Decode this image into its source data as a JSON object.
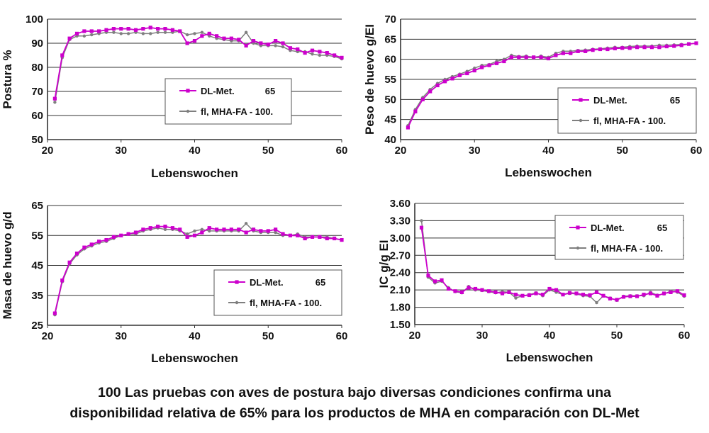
{
  "colors": {
    "dl": "#cc00cc",
    "mha": "#7f7f7f",
    "grid": "#333333",
    "frame": "#555555"
  },
  "caption": {
    "line1": "100 Las pruebas con aves de postura bajo diversas condiciones confirma una",
    "line2": "disponibilidad relativa de 65% para los productos de MHA en comparación con DL-Met"
  },
  "chart_data": [
    {
      "type": "line",
      "xlabel": "Lebenswochen",
      "ylabel": "Postura %",
      "xlim": [
        20,
        60
      ],
      "ylim": [
        50,
        100
      ],
      "xticks": [
        "20",
        "30",
        "40",
        "50",
        "60"
      ],
      "yticks": [
        "50",
        "60",
        "70",
        "80",
        "90",
        "100"
      ],
      "grid": "horizontal",
      "legend_position": "center-right",
      "legend": [
        {
          "label": "DL-Met.",
          "value": "65"
        },
        {
          "label": "fl, MHA-FA - 100.",
          "value": ""
        }
      ],
      "x": [
        21,
        22,
        23,
        24,
        25,
        26,
        27,
        28,
        29,
        30,
        31,
        32,
        33,
        34,
        35,
        36,
        37,
        38,
        39,
        40,
        41,
        42,
        43,
        44,
        45,
        46,
        47,
        48,
        49,
        50,
        51,
        52,
        53,
        54,
        55,
        56,
        57,
        58,
        59,
        60
      ],
      "series": [
        {
          "name": "DL-Met.",
          "values": [
            67,
            85,
            92,
            94,
            95,
            95,
            95,
            95.5,
            96,
            96,
            96,
            95.5,
            96,
            96.5,
            96,
            96,
            95.5,
            95,
            90,
            91,
            93,
            94,
            93,
            92,
            92,
            91.5,
            89,
            91,
            90,
            89.5,
            91,
            90,
            88,
            87.5,
            86,
            87,
            86.5,
            86,
            85,
            84
          ]
        },
        {
          "name": "fl, MHA-FA - 100.",
          "values": [
            65.5,
            84,
            91.5,
            93,
            93,
            93.5,
            94,
            94.5,
            94.5,
            94,
            94,
            94.5,
            94,
            94,
            94.5,
            94.5,
            94.5,
            95,
            93.5,
            94,
            94.5,
            93,
            92,
            91.5,
            91,
            91,
            94.5,
            90,
            89,
            89,
            89,
            88.5,
            87,
            86.5,
            86.5,
            85.5,
            85,
            85,
            84.5,
            83.5
          ]
        }
      ]
    },
    {
      "type": "line",
      "xlabel": "Lebenswochen",
      "ylabel": "Peso de huevo g/EI",
      "xlim": [
        20,
        60
      ],
      "ylim": [
        40,
        70
      ],
      "xticks": [
        "20",
        "30",
        "40",
        "50",
        "60"
      ],
      "yticks": [
        "40",
        "45",
        "50",
        "55",
        "60",
        "65",
        "70"
      ],
      "grid": "horizontal",
      "legend_position": "right",
      "legend": [
        {
          "label": "DL-Met.",
          "value": "65"
        },
        {
          "label": "fl, MHA-FA - 100.",
          "value": ""
        }
      ],
      "x": [
        21,
        22,
        23,
        24,
        25,
        26,
        27,
        28,
        29,
        30,
        31,
        32,
        33,
        34,
        35,
        36,
        37,
        38,
        39,
        40,
        41,
        42,
        43,
        44,
        45,
        46,
        47,
        48,
        49,
        50,
        51,
        52,
        53,
        54,
        55,
        56,
        57,
        58,
        59,
        60
      ],
      "series": [
        {
          "name": "DL-Met.",
          "values": [
            43,
            47,
            50,
            52,
            53.5,
            54.5,
            55.2,
            56,
            56.5,
            57.2,
            58,
            58.5,
            59,
            59.5,
            60.5,
            60.5,
            60.5,
            60.5,
            60.5,
            60.2,
            61,
            61.5,
            61.5,
            62,
            62,
            62.3,
            62.5,
            62.5,
            62.7,
            62.8,
            62.8,
            63,
            63,
            63,
            63,
            63.2,
            63.3,
            63.5,
            63.8,
            64
          ]
        },
        {
          "name": "fl, MHA-FA - 100.",
          "values": [
            43.5,
            47.5,
            50.5,
            52.5,
            54,
            55,
            55.7,
            56.3,
            57,
            57.8,
            58.5,
            58.7,
            59.5,
            60,
            61,
            60.7,
            60.8,
            60.5,
            60.8,
            60.5,
            61.5,
            62,
            62,
            62.2,
            62.3,
            62.5,
            62.6,
            62.8,
            63,
            63,
            63.2,
            63.3,
            63.3,
            63.3,
            63.5,
            63.5,
            63.6,
            63.7,
            63.8,
            64
          ]
        }
      ]
    },
    {
      "type": "line",
      "xlabel": "Lebenswochen",
      "ylabel": "Masa de huevo g/d",
      "xlim": [
        20,
        60
      ],
      "ylim": [
        25,
        65
      ],
      "xticks": [
        "20",
        "30",
        "40",
        "50",
        "60"
      ],
      "yticks": [
        "25",
        "35",
        "45",
        "55",
        "65"
      ],
      "grid": "horizontal",
      "legend_position": "bottom-right",
      "legend": [
        {
          "label": "DL-Met.",
          "value": "65"
        },
        {
          "label": "fl, MHA-FA - 100.",
          "value": ""
        }
      ],
      "x": [
        21,
        22,
        23,
        24,
        25,
        26,
        27,
        28,
        29,
        30,
        31,
        32,
        33,
        34,
        35,
        36,
        37,
        38,
        39,
        40,
        41,
        42,
        43,
        44,
        45,
        46,
        47,
        48,
        49,
        50,
        51,
        52,
        53,
        54,
        55,
        56,
        57,
        58,
        59,
        60
      ],
      "series": [
        {
          "name": "DL-Met.",
          "values": [
            29,
            40,
            46,
            49,
            51,
            52,
            53,
            53.5,
            54.5,
            55,
            55.5,
            56,
            57,
            57.5,
            58,
            58,
            57.5,
            57,
            54.5,
            55,
            56,
            57.5,
            57,
            57,
            57,
            57,
            56,
            57,
            56.5,
            56.5,
            57,
            55.5,
            55,
            55,
            54,
            54.5,
            54.5,
            54,
            54,
            53.5
          ]
        },
        {
          "name": "fl, MHA-FA - 100.",
          "values": [
            28.5,
            39.5,
            45.5,
            48.5,
            50.5,
            51.5,
            52.5,
            53,
            54,
            55,
            55.5,
            55.5,
            56.5,
            57,
            57.5,
            57,
            57,
            56.5,
            55.5,
            56.5,
            57,
            56.5,
            56.5,
            56.5,
            56.5,
            56.5,
            59,
            56.5,
            56,
            56,
            56,
            55,
            55,
            55.5,
            54.5,
            54.5,
            54.5,
            54.5,
            54,
            53.5
          ]
        }
      ]
    },
    {
      "type": "line",
      "xlabel": "Lebenswochen",
      "ylabel": "IC g/g EI",
      "xlim": [
        20,
        60
      ],
      "ylim": [
        1.5,
        3.6
      ],
      "xticks": [
        "20",
        "30",
        "40",
        "50",
        "60"
      ],
      "yticks": [
        "1.50",
        "1.80",
        "2.10",
        "2.40",
        "2.70",
        "3.00",
        "3.30",
        "3.60"
      ],
      "grid": "horizontal",
      "legend_position": "top-right",
      "legend": [
        {
          "label": "DL-Met.",
          "value": "65"
        },
        {
          "label": "fl, MHA-FA - 100.",
          "value": ""
        }
      ],
      "x": [
        21,
        22,
        23,
        24,
        25,
        26,
        27,
        28,
        29,
        30,
        31,
        32,
        33,
        34,
        35,
        36,
        37,
        38,
        39,
        40,
        41,
        42,
        43,
        44,
        45,
        46,
        47,
        48,
        49,
        50,
        51,
        52,
        53,
        54,
        55,
        56,
        57,
        58,
        59,
        60
      ],
      "series": [
        {
          "name": "DL-Met.",
          "values": [
            3.18,
            2.35,
            2.25,
            2.27,
            2.12,
            2.08,
            2.06,
            2.14,
            2.12,
            2.1,
            2.08,
            2.06,
            2.04,
            2.06,
            2.02,
            2,
            2.01,
            2.04,
            2.02,
            2.12,
            2.1,
            2.02,
            2.05,
            2.04,
            2.02,
            2.01,
            2.06,
            2.0,
            1.95,
            1.93,
            1.98,
            1.99,
            1.99,
            2.02,
            2.04,
            2.0,
            2.04,
            2.06,
            2.08,
            2.01
          ]
        },
        {
          "name": "fl, MHA-FA - 100.",
          "values": [
            3.3,
            2.32,
            2.22,
            2.25,
            2.14,
            2.07,
            2.05,
            2.16,
            2.1,
            2.09,
            2.07,
            2.05,
            2.07,
            2.06,
            1.96,
            2.0,
            2.02,
            2.05,
            2.0,
            2.1,
            2.06,
            2.02,
            2.04,
            2.03,
            2.0,
            1.99,
            1.88,
            2.0,
            1.96,
            1.92,
            1.99,
            2.0,
            2.0,
            2.0,
            2.06,
            2.01,
            2.03,
            2.08,
            2.06,
            1.99
          ]
        }
      ]
    }
  ]
}
